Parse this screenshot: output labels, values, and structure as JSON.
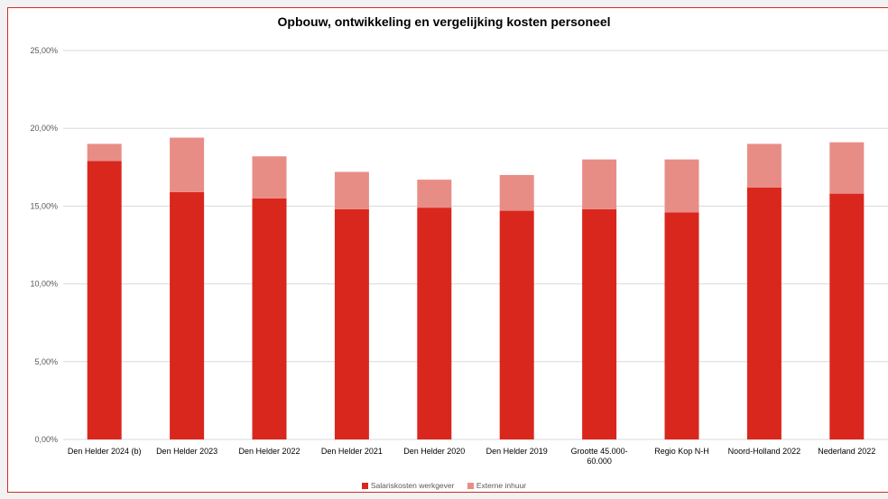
{
  "colors": {
    "salaris": "#d9271e",
    "extern": "#e88d86",
    "grid": "#d9d9d9",
    "text": "#595959"
  },
  "chart_data": {
    "type": "bar",
    "stacked": true,
    "title": "Opbouw, ontwikkeling en vergelijking kosten personeel",
    "categories": [
      [
        "Den Helder 2024 (b)"
      ],
      [
        "Den Helder 2023"
      ],
      [
        "Den Helder 2022"
      ],
      [
        "Den Helder 2021"
      ],
      [
        "Den Helder 2020"
      ],
      [
        "Den Helder 2019"
      ],
      [
        "Grootte 45.000-",
        "60.000"
      ],
      [
        "Regio Kop N-H"
      ],
      [
        "Noord-Holland 2022"
      ],
      [
        "Nederland 2022"
      ]
    ],
    "series": [
      {
        "name": "Salariskosten werkgever",
        "values": [
          17.9,
          15.9,
          15.5,
          14.8,
          14.9,
          14.7,
          14.8,
          14.6,
          16.2,
          15.8
        ]
      },
      {
        "name": "Externe inhuur",
        "values": [
          1.1,
          3.5,
          2.7,
          2.4,
          1.8,
          2.3,
          3.2,
          3.4,
          2.8,
          3.3
        ]
      }
    ],
    "ylim": [
      0,
      25
    ],
    "yticks": [
      "0,00%",
      "5,00%",
      "10,00%",
      "15,00%",
      "20,00%",
      "25,00%"
    ],
    "grid": true,
    "legend_position": "bottom"
  }
}
